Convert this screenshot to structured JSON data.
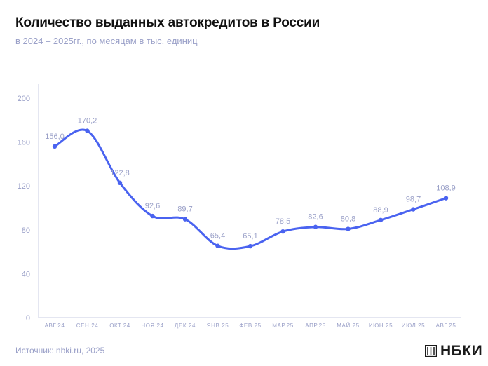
{
  "header": {
    "title": "Количество выданных автокредитов в России",
    "subtitle": "в 2024 – 2025гг., по месяцам в тыс. единиц"
  },
  "footer": {
    "source": "Источник: nbki.ru, 2025",
    "logo_text": "НБКИ"
  },
  "colors": {
    "line": "#4a63f0",
    "grid_axis": "#c9cce3",
    "label": "#9aa0c8"
  },
  "chart_data": {
    "type": "line",
    "categories": [
      "АВГ.24",
      "СЕН.24",
      "ОКТ.24",
      "НОЯ.24",
      "ДЕК.24",
      "ЯНВ.25",
      "ФЕВ.25",
      "МАР.25",
      "АПР.25",
      "МАЙ.25",
      "ИЮН.25",
      "ИЮЛ.25",
      "АВГ.25"
    ],
    "values": [
      156.0,
      170.2,
      122.8,
      92.6,
      89.7,
      65.4,
      65.1,
      78.5,
      82.6,
      80.8,
      88.9,
      98.7,
      108.9
    ],
    "data_labels": [
      "156,0",
      "170,2",
      "122,8",
      "92,6",
      "89,7",
      "65,4",
      "65,1",
      "78,5",
      "82,6",
      "80,8",
      "88,9",
      "98,7",
      "108,9"
    ],
    "yticks": [
      "0",
      "40",
      "80",
      "120",
      "160",
      "200"
    ],
    "ylim": [
      0,
      200
    ],
    "grid": false,
    "smooth": true
  }
}
